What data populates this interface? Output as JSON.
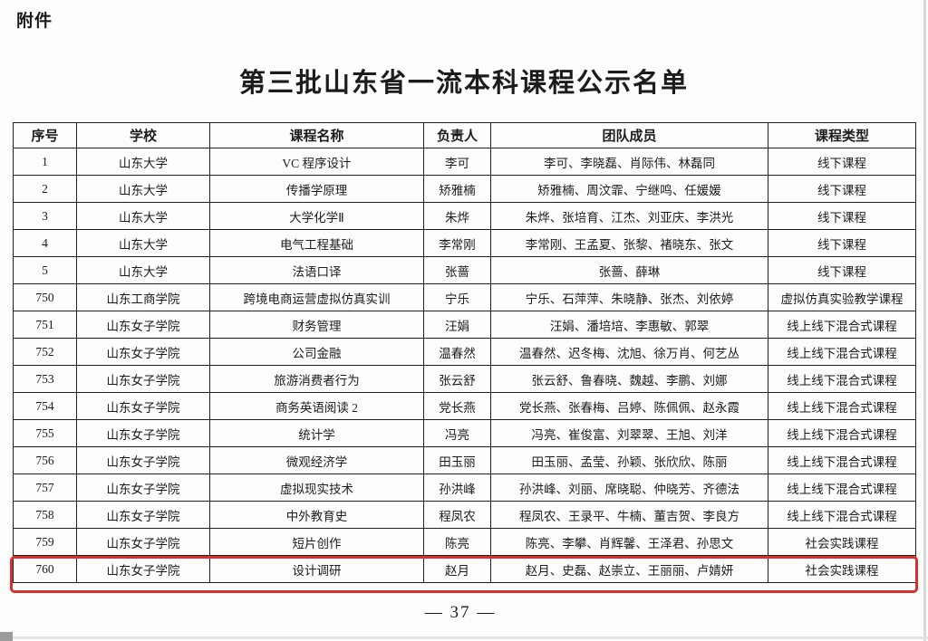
{
  "page": {
    "attachment_label": "附件",
    "title": "第三批山东省一流本科课程公示名单",
    "page_number": "— 37 —"
  },
  "colors": {
    "highlight_red": "#d7322a",
    "table_border": "#1f1f1f",
    "text": "#1c1c1c",
    "background": "#fdfdfd"
  },
  "table": {
    "columns": [
      {
        "key": "index",
        "label": "序号"
      },
      {
        "key": "school",
        "label": "学校"
      },
      {
        "key": "course",
        "label": "课程名称"
      },
      {
        "key": "leader",
        "label": "负责人"
      },
      {
        "key": "team",
        "label": "团队成员"
      },
      {
        "key": "type",
        "label": "课程类型"
      }
    ],
    "rows": [
      {
        "index": "1",
        "school": "山东大学",
        "course": "VC 程序设计",
        "leader": "李可",
        "team": "李可、李晓磊、肖际伟、林磊同",
        "type": "线下课程",
        "highlighted": false
      },
      {
        "index": "2",
        "school": "山东大学",
        "course": "传播学原理",
        "leader": "矫雅楠",
        "team": "矫雅楠、周汶霏、宁继鸣、任媛媛",
        "type": "线下课程",
        "highlighted": false
      },
      {
        "index": "3",
        "school": "山东大学",
        "course": "大学化学Ⅱ",
        "leader": "朱烨",
        "team": "朱烨、张培育、江杰、刘亚庆、李洪光",
        "type": "线下课程",
        "highlighted": false
      },
      {
        "index": "4",
        "school": "山东大学",
        "course": "电气工程基础",
        "leader": "李常刚",
        "team": "李常刚、王孟夏、张黎、褚晓东、张文",
        "type": "线下课程",
        "highlighted": false
      },
      {
        "index": "5",
        "school": "山东大学",
        "course": "法语口译",
        "leader": "张蔷",
        "team": "张蔷、薛琳",
        "type": "线下课程",
        "highlighted": false
      },
      {
        "index": "750",
        "school": "山东工商学院",
        "course": "跨境电商运营虚拟仿真实训",
        "leader": "宁乐",
        "team": "宁乐、石萍萍、朱晓静、张杰、刘依婷",
        "type": "虚拟仿真实验教学课程",
        "highlighted": false
      },
      {
        "index": "751",
        "school": "山东女子学院",
        "course": "财务管理",
        "leader": "汪娟",
        "team": "汪娟、潘培培、李惠敏、郭翠",
        "type": "线上线下混合式课程",
        "highlighted": false
      },
      {
        "index": "752",
        "school": "山东女子学院",
        "course": "公司金融",
        "leader": "温春然",
        "team": "温春然、迟冬梅、沈旭、徐万肖、何艺丛",
        "type": "线上线下混合式课程",
        "highlighted": false
      },
      {
        "index": "753",
        "school": "山东女子学院",
        "course": "旅游消费者行为",
        "leader": "张云舒",
        "team": "张云舒、鲁春晓、魏越、李鹏、刘娜",
        "type": "线上线下混合式课程",
        "highlighted": false
      },
      {
        "index": "754",
        "school": "山东女子学院",
        "course": "商务英语阅读 2",
        "leader": "党长燕",
        "team": "党长燕、张春梅、吕婷、陈佩佩、赵永霞",
        "type": "线上线下混合式课程",
        "highlighted": false
      },
      {
        "index": "755",
        "school": "山东女子学院",
        "course": "统计学",
        "leader": "冯亮",
        "team": "冯亮、崔俊富、刘翠翠、王旭、刘洋",
        "type": "线上线下混合式课程",
        "highlighted": false
      },
      {
        "index": "756",
        "school": "山东女子学院",
        "course": "微观经济学",
        "leader": "田玉丽",
        "team": "田玉丽、孟莹、孙颖、张欣欣、陈丽",
        "type": "线上线下混合式课程",
        "highlighted": false
      },
      {
        "index": "757",
        "school": "山东女子学院",
        "course": "虚拟现实技术",
        "leader": "孙洪峰",
        "team": "孙洪峰、刘丽、席晓聪、仲晓芳、齐德法",
        "type": "线上线下混合式课程",
        "highlighted": false
      },
      {
        "index": "758",
        "school": "山东女子学院",
        "course": "中外教育史",
        "leader": "程凤农",
        "team": "程凤农、王录平、牛楠、董吉贺、李良方",
        "type": "线上线下混合式课程",
        "highlighted": false
      },
      {
        "index": "759",
        "school": "山东女子学院",
        "course": "短片创作",
        "leader": "陈亮",
        "team": "陈亮、李攀、肖辉馨、王泽君、孙思文",
        "type": "社会实践课程",
        "highlighted": false
      },
      {
        "index": "760",
        "school": "山东女子学院",
        "course": "设计调研",
        "leader": "赵月",
        "team": "赵月、史磊、赵崇立、王丽丽、卢婧妍",
        "type": "社会实践课程",
        "highlighted": true
      }
    ]
  }
}
